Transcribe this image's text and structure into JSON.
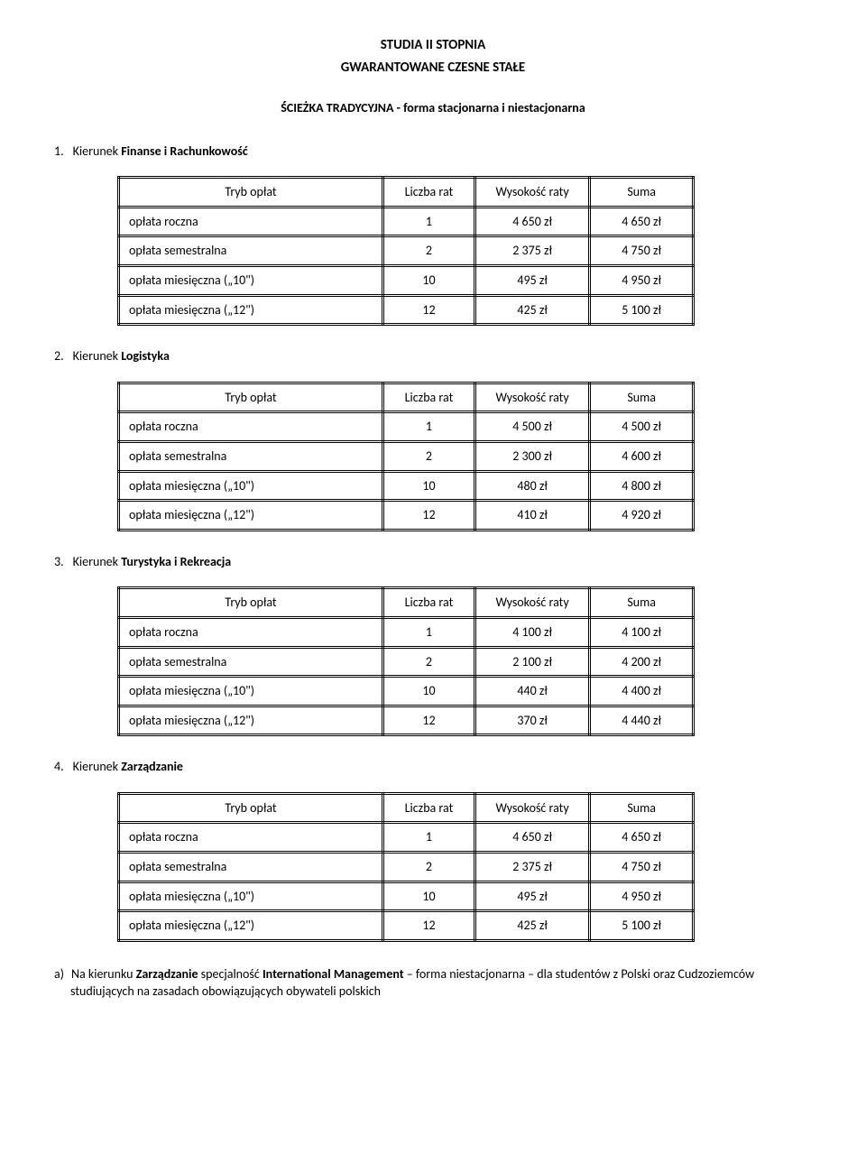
{
  "header": {
    "title1": "STUDIA II STOPNIA",
    "title2": "GWARANTOWANE CZESNE STAŁE",
    "subtitle": "ŚCIEŻKA TRADYCYJNA  - forma stacjonarna i niestacjonarna"
  },
  "table_headers": [
    "Tryb opłat",
    "Liczba rat",
    "Wysokość raty",
    "Suma"
  ],
  "row_labels": [
    "opłata roczna",
    "opłata semestralna",
    "opłata miesięczna („10\")",
    "opłata miesięczna („12\")"
  ],
  "sections": [
    {
      "num": "1.",
      "prefix": "Kierunek ",
      "name": "Finanse i Rachunkowość",
      "rows": [
        [
          "1",
          "4 650 zł",
          "4 650 zł"
        ],
        [
          "2",
          "2 375 zł",
          "4 750 zł"
        ],
        [
          "10",
          "495 zł",
          "4 950 zł"
        ],
        [
          "12",
          "425 zł",
          "5 100 zł"
        ]
      ]
    },
    {
      "num": "2.",
      "prefix": "Kierunek ",
      "name": "Logistyka",
      "rows": [
        [
          "1",
          "4 500 zł",
          "4 500 zł"
        ],
        [
          "2",
          "2 300 zł",
          "4 600 zł"
        ],
        [
          "10",
          "480 zł",
          "4 800 zł"
        ],
        [
          "12",
          "410 zł",
          "4 920 zł"
        ]
      ]
    },
    {
      "num": "3.",
      "prefix": "Kierunek ",
      "name": "Turystyka i Rekreacja",
      "rows": [
        [
          "1",
          "4 100 zł",
          "4 100 zł"
        ],
        [
          "2",
          "2 100 zł",
          "4 200 zł"
        ],
        [
          "10",
          "440 zł",
          "4 400 zł"
        ],
        [
          "12",
          "370 zł",
          "4 440 zł"
        ]
      ]
    },
    {
      "num": "4.",
      "prefix": "Kierunek ",
      "name": "Zarządzanie",
      "rows": [
        [
          "1",
          "4 650 zł",
          "4 650 zł"
        ],
        [
          "2",
          "2 375 zł",
          "4 750 zł"
        ],
        [
          "10",
          "495 zł",
          "4 950 zł"
        ],
        [
          "12",
          "425 zł",
          "5 100 zł"
        ]
      ]
    }
  ],
  "footnote": {
    "marker": "a)",
    "pre": "Na kierunku ",
    "bold1": "Zarządzanie",
    "mid": " specjalność ",
    "bold2": "International Management",
    "post": " – forma niestacjonarna – dla studentów z Polski oraz Cudzoziemców studiujących na zasadach obowiązujących obywateli polskich"
  }
}
